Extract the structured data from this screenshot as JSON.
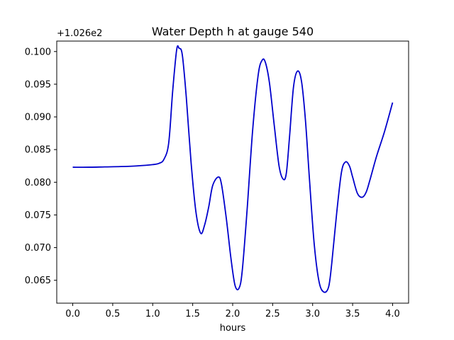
{
  "chart_data": {
    "type": "line",
    "title": "Water Depth h at gauge 540",
    "xlabel": "hours",
    "ylabel": "",
    "y_offset_text": "+1.026e2",
    "y_offset_value": 102.6,
    "xlim": [
      -0.2,
      4.2
    ],
    "ylim": [
      0.0615,
      0.1016
    ],
    "x_ticks": [
      0.0,
      0.5,
      1.0,
      1.5,
      2.0,
      2.5,
      3.0,
      3.5,
      4.0
    ],
    "x_tick_labels": [
      "0.0",
      "0.5",
      "1.0",
      "1.5",
      "2.0",
      "2.5",
      "3.0",
      "3.5",
      "4.0"
    ],
    "y_ticks": [
      0.065,
      0.07,
      0.075,
      0.08,
      0.085,
      0.09,
      0.095,
      0.1
    ],
    "y_tick_labels": [
      "0.065",
      "0.070",
      "0.075",
      "0.080",
      "0.085",
      "0.090",
      "0.095",
      "0.100"
    ],
    "grid": false,
    "series": [
      {
        "color": "#0000cc",
        "x": [
          0.0,
          0.2,
          0.4,
          0.6,
          0.8,
          1.0,
          1.08,
          1.14,
          1.2,
          1.25,
          1.3,
          1.33,
          1.37,
          1.42,
          1.48,
          1.54,
          1.6,
          1.65,
          1.7,
          1.75,
          1.82,
          1.86,
          1.92,
          1.98,
          2.03,
          2.08,
          2.12,
          2.18,
          2.25,
          2.32,
          2.37,
          2.41,
          2.46,
          2.52,
          2.58,
          2.63,
          2.67,
          2.71,
          2.76,
          2.81,
          2.86,
          2.91,
          2.96,
          3.02,
          3.08,
          3.14,
          3.2,
          3.24,
          3.3,
          3.36,
          3.41,
          3.46,
          3.5,
          3.56,
          3.62,
          3.67,
          3.72,
          3.8,
          3.9,
          4.0
        ],
        "y": [
          0.0823,
          0.0823,
          0.08235,
          0.0824,
          0.0825,
          0.0827,
          0.0829,
          0.0835,
          0.086,
          0.094,
          0.1003,
          0.1005,
          0.0995,
          0.093,
          0.083,
          0.0755,
          0.0722,
          0.0735,
          0.0762,
          0.0795,
          0.0808,
          0.0797,
          0.0745,
          0.0682,
          0.0642,
          0.0638,
          0.0665,
          0.0757,
          0.088,
          0.0965,
          0.0987,
          0.0983,
          0.0952,
          0.0887,
          0.0825,
          0.0805,
          0.0813,
          0.0868,
          0.0945,
          0.097,
          0.0955,
          0.0895,
          0.0805,
          0.0705,
          0.0648,
          0.0632,
          0.064,
          0.0677,
          0.0752,
          0.0815,
          0.0831,
          0.0825,
          0.0808,
          0.0783,
          0.0777,
          0.0785,
          0.0805,
          0.084,
          0.0878,
          0.0922
        ]
      }
    ]
  }
}
